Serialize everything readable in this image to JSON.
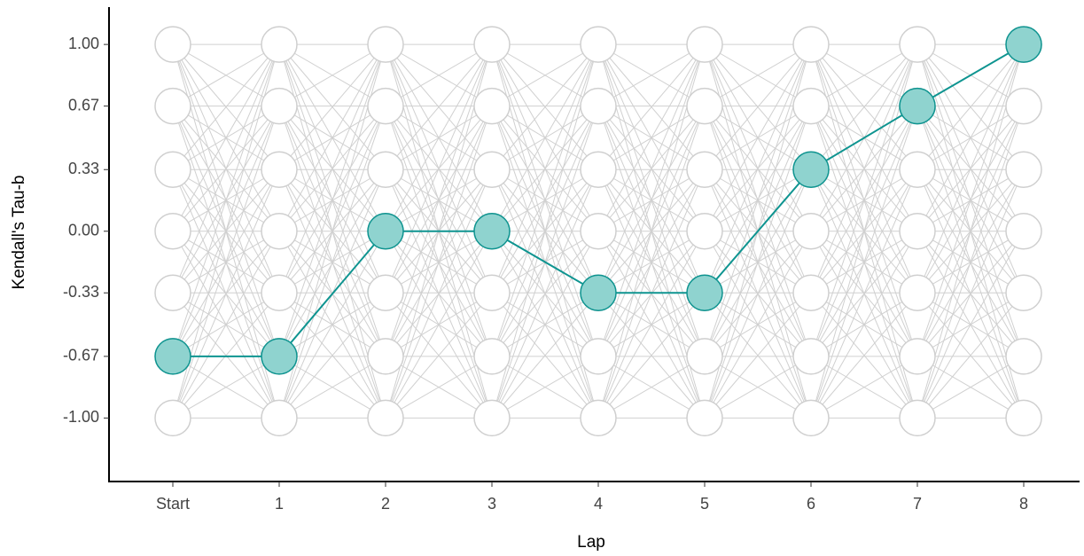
{
  "chart_data": {
    "type": "line",
    "xlabel": "Lap",
    "ylabel": "Kendall's Tau-b",
    "categories": [
      "Start",
      "1",
      "2",
      "3",
      "4",
      "5",
      "6",
      "7",
      "8"
    ],
    "values": [
      -0.67,
      -0.67,
      0,
      0,
      -0.33,
      -0.33,
      0.33,
      0.67,
      1.0
    ],
    "color": "#0e9490",
    "marker_fill": "#8fd3cf",
    "ylim": [
      -1.34,
      1.2
    ],
    "yticks": [
      {
        "value": -1,
        "label": "-1.00"
      },
      {
        "value": -0.67,
        "label": "-0.67"
      },
      {
        "value": -0.33,
        "label": "-0.33"
      },
      {
        "value": 0,
        "label": "0.00"
      },
      {
        "value": 0.33,
        "label": "0.33"
      },
      {
        "value": 0.67,
        "label": "0.67"
      },
      {
        "value": 1,
        "label": "1.00"
      }
    ]
  }
}
